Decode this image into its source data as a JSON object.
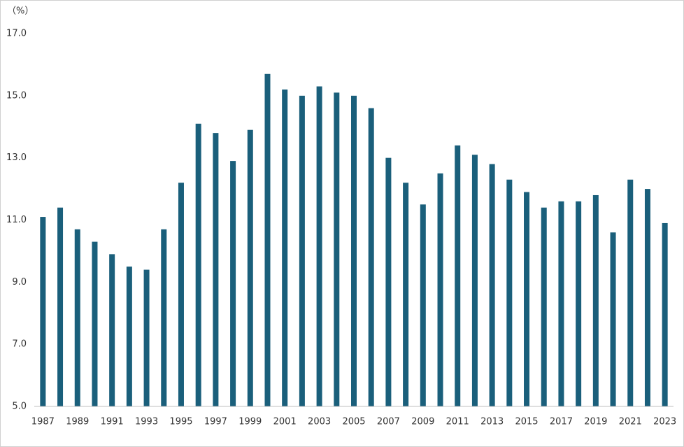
{
  "chart_data": {
    "type": "bar",
    "y_label": "（%）",
    "categories": [
      "1987",
      null,
      "1989",
      null,
      "1991",
      null,
      "1993",
      null,
      "1995",
      null,
      "1997",
      null,
      "1999",
      null,
      "2001",
      null,
      "2003",
      null,
      "2005",
      null,
      "2007",
      null,
      "2009",
      null,
      "2011",
      null,
      "2013",
      null,
      "2015",
      null,
      "2017",
      null,
      "2019",
      null,
      "2021",
      null,
      "2023"
    ],
    "values": [
      11.1,
      11.4,
      10.7,
      10.3,
      9.9,
      9.5,
      9.4,
      10.7,
      12.2,
      14.1,
      13.8,
      12.9,
      13.9,
      15.7,
      15.2,
      15.0,
      15.3,
      15.1,
      15.0,
      14.6,
      13.0,
      12.2,
      11.5,
      12.5,
      13.4,
      13.1,
      12.8,
      12.3,
      11.9,
      11.4,
      11.6,
      11.6,
      11.8,
      10.6,
      12.3,
      12.0,
      10.9
    ],
    "color": "#1a5f7b",
    "ylim": [
      5,
      17
    ],
    "yticks": [
      {
        "value": 5,
        "label": "5.0"
      },
      {
        "value": 7,
        "label": "7.0"
      },
      {
        "value": 9,
        "label": "9.0"
      },
      {
        "value": 11,
        "label": "11.0"
      },
      {
        "value": 13,
        "label": "13.0"
      },
      {
        "value": 15,
        "label": "15.0"
      },
      {
        "value": 17,
        "label": "17.0"
      }
    ],
    "grid": false
  }
}
